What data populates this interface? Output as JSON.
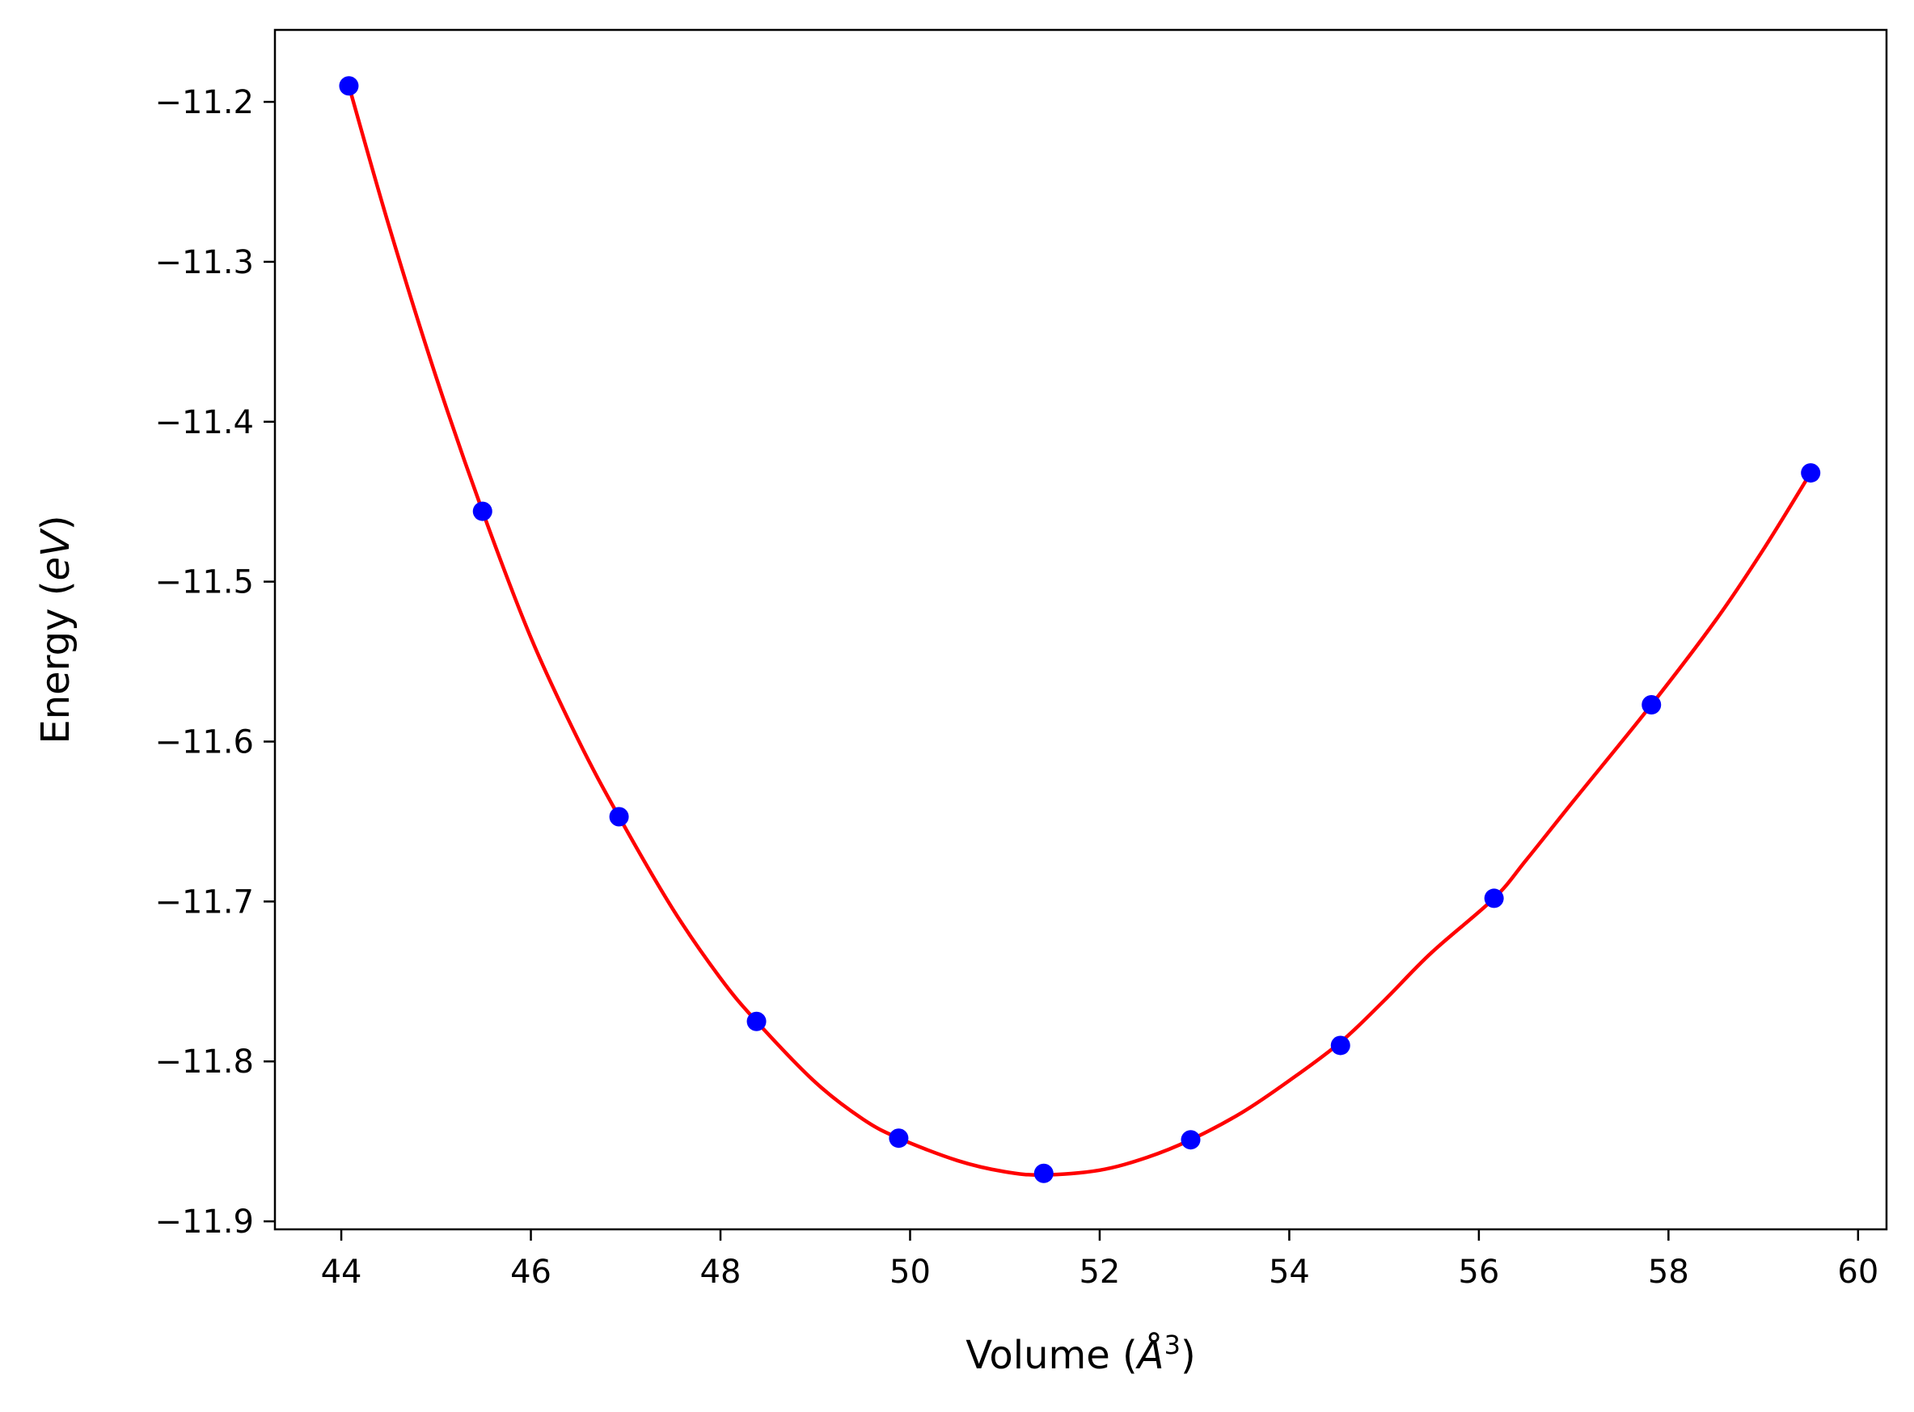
{
  "chart_data": {
    "type": "scatter",
    "xlabel": "Volume ($\\AA^3$)",
    "xlabel_parts": {
      "prefix": "Volume (",
      "symbol": "Å",
      "sup": "3",
      "suffix": ")"
    },
    "ylabel": "Energy ($eV$)",
    "ylabel_parts": {
      "prefix": "Energy (",
      "italic": "eV",
      "suffix": ")"
    },
    "xlim": [
      43.3,
      60.3
    ],
    "ylim": [
      -11.905,
      -11.155
    ],
    "xticks": [
      44,
      46,
      48,
      50,
      52,
      54,
      56,
      58,
      60
    ],
    "xtick_labels": [
      "44",
      "46",
      "48",
      "50",
      "52",
      "54",
      "56",
      "58",
      "60"
    ],
    "yticks": [
      -11.2,
      -11.3,
      -11.4,
      -11.5,
      -11.6,
      -11.7,
      -11.8,
      -11.9
    ],
    "ytick_labels": [
      "−11.2",
      "−11.3",
      "−11.4",
      "−11.5",
      "−11.6",
      "−11.7",
      "−11.8",
      "−11.9"
    ],
    "grid": false,
    "legend": "none",
    "series": [
      {
        "kind": "points",
        "color": "#0000ff",
        "x": [
          44.08,
          45.49,
          46.93,
          48.38,
          49.88,
          51.41,
          52.96,
          54.54,
          56.16,
          57.82,
          59.5
        ],
        "y": [
          -11.19,
          -11.456,
          -11.647,
          -11.775,
          -11.848,
          -11.87,
          -11.849,
          -11.79,
          -11.698,
          -11.577,
          -11.432
        ]
      },
      {
        "kind": "fit-curve",
        "color": "#ff0000",
        "x": [
          44.08,
          44.5,
          45.0,
          45.49,
          46.0,
          46.5,
          46.93,
          47.5,
          48.0,
          48.38,
          49.0,
          49.5,
          49.88,
          50.5,
          51.0,
          51.41,
          52.0,
          52.5,
          52.96,
          53.5,
          54.0,
          54.54,
          55.0,
          55.5,
          56.16,
          56.5,
          57.0,
          57.82,
          58.5,
          59.0,
          59.5
        ],
        "y": [
          -11.19,
          -11.277,
          -11.372,
          -11.456,
          -11.535,
          -11.599,
          -11.647,
          -11.705,
          -11.748,
          -11.775,
          -11.813,
          -11.836,
          -11.848,
          -11.862,
          -11.869,
          -11.871,
          -11.868,
          -11.86,
          -11.849,
          -11.832,
          -11.812,
          -11.788,
          -11.762,
          -11.732,
          -11.698,
          -11.674,
          -11.637,
          -11.577,
          -11.524,
          -11.48,
          -11.432
        ]
      }
    ]
  }
}
